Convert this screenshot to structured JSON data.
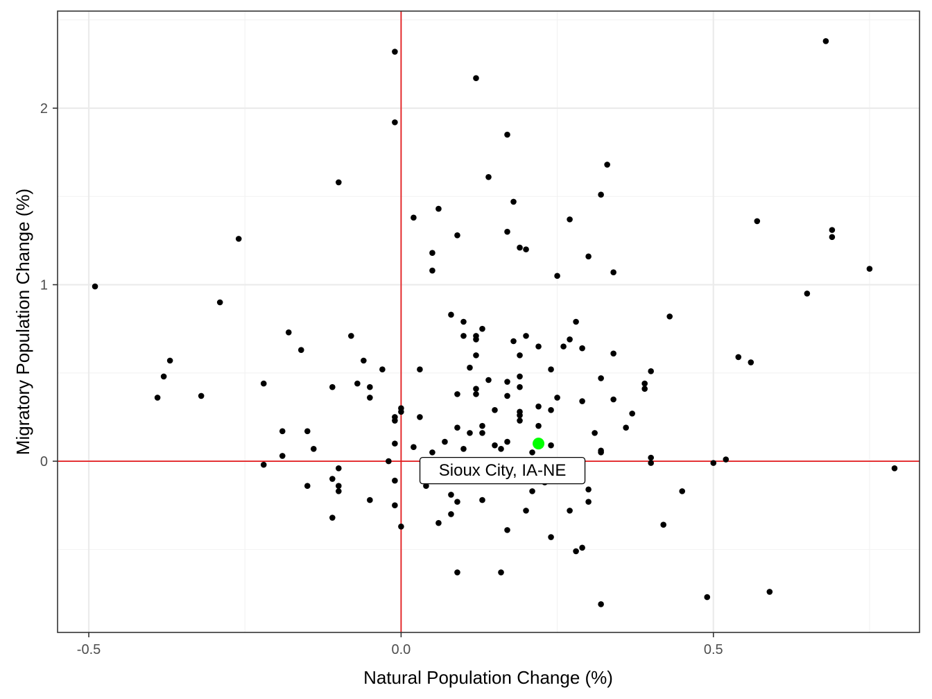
{
  "chart_data": {
    "type": "scatter",
    "title": "",
    "xlabel": "Natural Population Change (%)",
    "ylabel": "Migratory Population Change (%)",
    "xlim": [
      -0.55,
      0.83
    ],
    "ylim": [
      -0.97,
      2.55
    ],
    "x_ticks": [
      -0.5,
      0.0,
      0.5
    ],
    "x_tick_labels": [
      "-0.5",
      "0.0",
      "0.5"
    ],
    "y_ticks": [
      0,
      1,
      2
    ],
    "y_tick_labels": [
      "0",
      "1",
      "2"
    ],
    "grid": true,
    "reference_lines": {
      "x": 0,
      "y": 0,
      "color": "#e41a1c"
    },
    "point_color": "#000000",
    "highlight": {
      "label": "Sioux City, IA-NE",
      "x": 0.22,
      "y": 0.1,
      "color": "#00ff00"
    },
    "points": [
      [
        -0.49,
        0.99
      ],
      [
        -0.39,
        0.36
      ],
      [
        -0.37,
        0.57
      ],
      [
        -0.38,
        0.48
      ],
      [
        -0.32,
        0.37
      ],
      [
        -0.29,
        0.9
      ],
      [
        -0.26,
        1.26
      ],
      [
        -0.22,
        0.44
      ],
      [
        -0.22,
        -0.02
      ],
      [
        -0.19,
        0.17
      ],
      [
        -0.19,
        0.03
      ],
      [
        -0.18,
        0.73
      ],
      [
        -0.16,
        0.63
      ],
      [
        -0.15,
        0.17
      ],
      [
        -0.14,
        0.07
      ],
      [
        -0.15,
        -0.14
      ],
      [
        -0.11,
        0.42
      ],
      [
        -0.11,
        -0.1
      ],
      [
        -0.11,
        -0.32
      ],
      [
        -0.1,
        1.58
      ],
      [
        -0.1,
        -0.04
      ],
      [
        -0.1,
        -0.14
      ],
      [
        -0.1,
        -0.17
      ],
      [
        -0.08,
        0.71
      ],
      [
        -0.07,
        0.44
      ],
      [
        -0.06,
        0.57
      ],
      [
        -0.05,
        0.42
      ],
      [
        -0.05,
        0.36
      ],
      [
        -0.05,
        -0.22
      ],
      [
        -0.03,
        0.52
      ],
      [
        -0.02,
        0.0
      ],
      [
        -0.01,
        2.32
      ],
      [
        -0.01,
        1.92
      ],
      [
        -0.01,
        0.25
      ],
      [
        -0.01,
        0.23
      ],
      [
        -0.01,
        0.1
      ],
      [
        -0.01,
        -0.11
      ],
      [
        -0.01,
        -0.25
      ],
      [
        0.0,
        0.3
      ],
      [
        0.0,
        0.28
      ],
      [
        0.0,
        -0.37
      ],
      [
        0.02,
        1.38
      ],
      [
        0.02,
        0.08
      ],
      [
        0.03,
        0.52
      ],
      [
        0.03,
        0.25
      ],
      [
        0.04,
        -0.14
      ],
      [
        0.05,
        1.18
      ],
      [
        0.05,
        1.08
      ],
      [
        0.05,
        0.05
      ],
      [
        0.06,
        1.43
      ],
      [
        0.06,
        -0.35
      ],
      [
        0.07,
        0.11
      ],
      [
        0.08,
        0.83
      ],
      [
        0.08,
        -0.19
      ],
      [
        0.08,
        -0.3
      ],
      [
        0.09,
        1.28
      ],
      [
        0.09,
        0.38
      ],
      [
        0.09,
        0.19
      ],
      [
        0.09,
        -0.23
      ],
      [
        0.09,
        -0.63
      ],
      [
        0.1,
        0.79
      ],
      [
        0.1,
        0.71
      ],
      [
        0.1,
        0.07
      ],
      [
        0.11,
        0.53
      ],
      [
        0.11,
        0.16
      ],
      [
        0.12,
        2.17
      ],
      [
        0.12,
        0.71
      ],
      [
        0.12,
        0.69
      ],
      [
        0.12,
        0.6
      ],
      [
        0.12,
        0.41
      ],
      [
        0.12,
        0.38
      ],
      [
        0.13,
        0.75
      ],
      [
        0.13,
        0.2
      ],
      [
        0.13,
        0.16
      ],
      [
        0.13,
        -0.22
      ],
      [
        0.14,
        1.61
      ],
      [
        0.14,
        0.46
      ],
      [
        0.15,
        0.29
      ],
      [
        0.15,
        0.09
      ],
      [
        0.16,
        0.07
      ],
      [
        0.16,
        -0.63
      ],
      [
        0.17,
        1.85
      ],
      [
        0.17,
        1.3
      ],
      [
        0.17,
        0.45
      ],
      [
        0.17,
        0.37
      ],
      [
        0.17,
        0.11
      ],
      [
        0.17,
        -0.39
      ],
      [
        0.18,
        1.47
      ],
      [
        0.18,
        0.68
      ],
      [
        0.19,
        1.21
      ],
      [
        0.19,
        0.6
      ],
      [
        0.19,
        0.48
      ],
      [
        0.19,
        0.42
      ],
      [
        0.19,
        0.28
      ],
      [
        0.19,
        0.26
      ],
      [
        0.19,
        0.23
      ],
      [
        0.2,
        1.2
      ],
      [
        0.2,
        0.71
      ],
      [
        0.2,
        -0.28
      ],
      [
        0.21,
        0.05
      ],
      [
        0.21,
        -0.17
      ],
      [
        0.22,
        0.65
      ],
      [
        0.22,
        0.31
      ],
      [
        0.22,
        0.2
      ],
      [
        0.23,
        -0.12
      ],
      [
        0.24,
        0.52
      ],
      [
        0.24,
        0.29
      ],
      [
        0.24,
        0.09
      ],
      [
        0.24,
        -0.43
      ],
      [
        0.25,
        1.05
      ],
      [
        0.25,
        0.36
      ],
      [
        0.26,
        0.65
      ],
      [
        0.27,
        1.37
      ],
      [
        0.27,
        0.69
      ],
      [
        0.27,
        -0.28
      ],
      [
        0.28,
        0.79
      ],
      [
        0.28,
        -0.51
      ],
      [
        0.29,
        0.64
      ],
      [
        0.29,
        0.34
      ],
      [
        0.29,
        -0.49
      ],
      [
        0.3,
        1.16
      ],
      [
        0.3,
        -0.16
      ],
      [
        0.3,
        -0.23
      ],
      [
        0.31,
        0.16
      ],
      [
        0.32,
        1.51
      ],
      [
        0.32,
        0.47
      ],
      [
        0.32,
        0.06
      ],
      [
        0.32,
        0.05
      ],
      [
        0.32,
        -0.81
      ],
      [
        0.33,
        1.68
      ],
      [
        0.34,
        1.07
      ],
      [
        0.34,
        0.61
      ],
      [
        0.34,
        0.35
      ],
      [
        0.36,
        0.19
      ],
      [
        0.37,
        0.27
      ],
      [
        0.39,
        0.44
      ],
      [
        0.39,
        0.41
      ],
      [
        0.4,
        0.51
      ],
      [
        0.4,
        0.02
      ],
      [
        0.4,
        -0.01
      ],
      [
        0.42,
        -0.36
      ],
      [
        0.43,
        0.82
      ],
      [
        0.45,
        -0.17
      ],
      [
        0.49,
        -0.77
      ],
      [
        0.5,
        -0.01
      ],
      [
        0.52,
        0.01
      ],
      [
        0.54,
        0.59
      ],
      [
        0.56,
        0.56
      ],
      [
        0.57,
        1.36
      ],
      [
        0.59,
        -0.74
      ],
      [
        0.65,
        0.95
      ],
      [
        0.68,
        2.38
      ],
      [
        0.69,
        1.31
      ],
      [
        0.69,
        1.27
      ],
      [
        0.75,
        1.09
      ],
      [
        0.79,
        -0.04
      ]
    ]
  }
}
